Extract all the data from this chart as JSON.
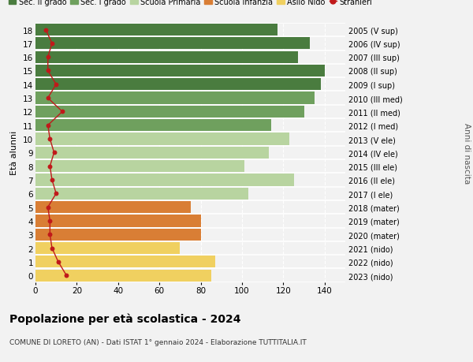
{
  "ages": [
    18,
    17,
    16,
    15,
    14,
    13,
    12,
    11,
    10,
    9,
    8,
    7,
    6,
    5,
    4,
    3,
    2,
    1,
    0
  ],
  "bar_values": [
    117,
    133,
    127,
    140,
    138,
    135,
    130,
    114,
    123,
    113,
    101,
    125,
    103,
    75,
    80,
    80,
    70,
    87,
    85
  ],
  "bar_colors": [
    "#4a7c3f",
    "#4a7c3f",
    "#4a7c3f",
    "#4a7c3f",
    "#4a7c3f",
    "#6fa05e",
    "#6fa05e",
    "#6fa05e",
    "#b8d4a0",
    "#b8d4a0",
    "#b8d4a0",
    "#b8d4a0",
    "#b8d4a0",
    "#d97e35",
    "#d97e35",
    "#d97e35",
    "#f0d060",
    "#f0d060",
    "#f0d060"
  ],
  "right_labels": [
    "2005 (V sup)",
    "2006 (IV sup)",
    "2007 (III sup)",
    "2008 (II sup)",
    "2009 (I sup)",
    "2010 (III med)",
    "2011 (II med)",
    "2012 (I med)",
    "2013 (V ele)",
    "2014 (IV ele)",
    "2015 (III ele)",
    "2016 (II ele)",
    "2017 (I ele)",
    "2018 (mater)",
    "2019 (mater)",
    "2020 (mater)",
    "2021 (nido)",
    "2022 (nido)",
    "2023 (nido)"
  ],
  "stranieri_values": [
    5,
    8,
    6,
    6,
    10,
    6,
    13,
    6,
    7,
    9,
    7,
    8,
    10,
    6,
    7,
    7,
    8,
    11,
    15
  ],
  "legend_labels": [
    "Sec. II grado",
    "Sec. I grado",
    "Scuola Primaria",
    "Scuola Infanzia",
    "Asilo Nido",
    "Stranieri"
  ],
  "legend_colors": [
    "#4a7c3f",
    "#6fa05e",
    "#b8d4a0",
    "#d97e35",
    "#f0d060",
    "#c0191a"
  ],
  "title": "Popolazione per età scolastica - 2024",
  "subtitle": "COMUNE DI LORETO (AN) - Dati ISTAT 1° gennaio 2024 - Elaborazione TUTTITALIA.IT",
  "ylabel": "Età alunni",
  "right_ylabel": "Anni di nascita",
  "xlim": [
    0,
    150
  ],
  "ylim": [
    -0.5,
    18.5
  ],
  "bg_color": "#f2f2f2",
  "bar_height": 0.88
}
